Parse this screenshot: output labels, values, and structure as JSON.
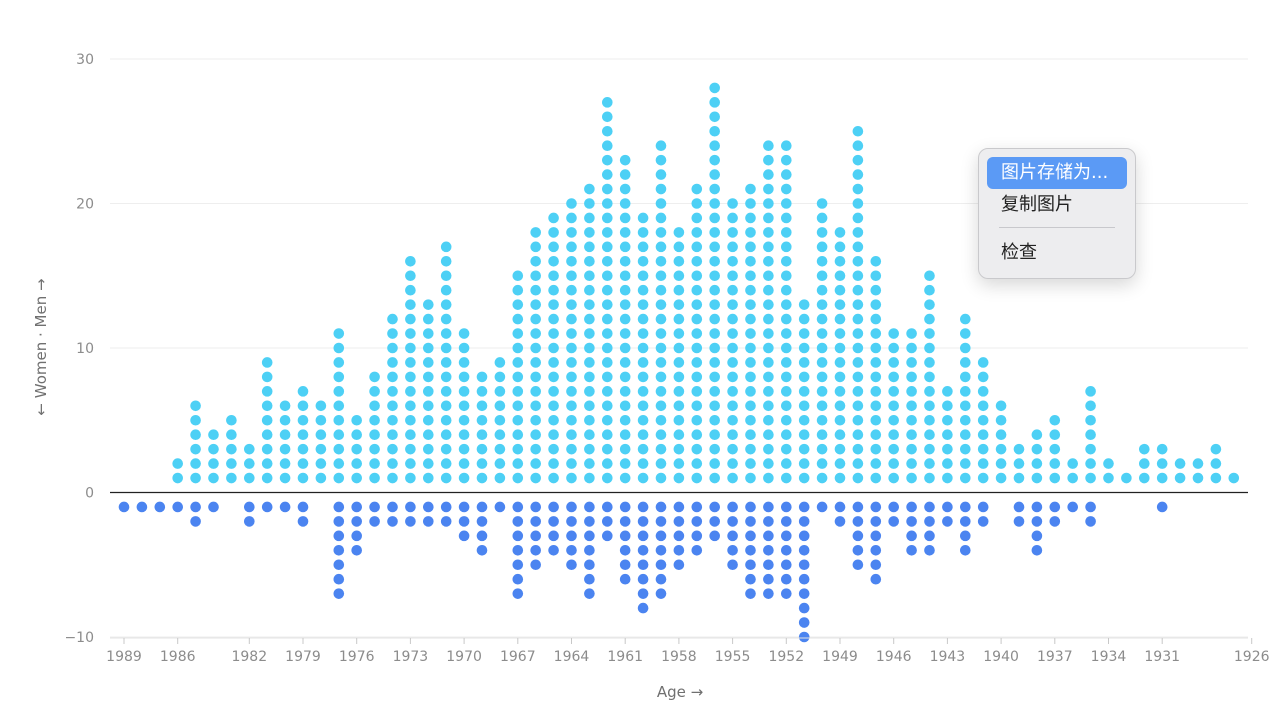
{
  "chart_data": {
    "type": "scatter",
    "subtype": "stacked-dot",
    "xlabel": "Age →",
    "ylabel": "← Women · Men →",
    "ylim": [
      -10,
      30
    ],
    "yticks": [
      -10,
      0,
      10,
      20,
      30
    ],
    "xticks": [
      1989,
      1986,
      1982,
      1979,
      1976,
      1973,
      1970,
      1967,
      1964,
      1961,
      1958,
      1955,
      1952,
      1949,
      1946,
      1943,
      1940,
      1937,
      1934,
      1931,
      1926
    ],
    "x_order": "descending",
    "grid": "horizontal",
    "series": [
      {
        "name": "Men",
        "color": "#4dd0f5",
        "x": [
          1989,
          1988,
          1987,
          1986,
          1985,
          1984,
          1983,
          1982,
          1981,
          1980,
          1979,
          1978,
          1977,
          1976,
          1975,
          1974,
          1973,
          1972,
          1971,
          1970,
          1969,
          1968,
          1967,
          1966,
          1965,
          1964,
          1963,
          1962,
          1961,
          1960,
          1959,
          1958,
          1957,
          1956,
          1955,
          1954,
          1953,
          1952,
          1951,
          1950,
          1949,
          1948,
          1947,
          1946,
          1945,
          1944,
          1943,
          1942,
          1941,
          1940,
          1939,
          1938,
          1937,
          1936,
          1935,
          1934,
          1933,
          1932,
          1931,
          1930,
          1929,
          1928,
          1927,
          1926,
          1925
        ],
        "y": [
          0,
          0,
          0,
          2,
          6,
          4,
          5,
          3,
          9,
          6,
          7,
          6,
          11,
          5,
          8,
          12,
          16,
          13,
          17,
          11,
          8,
          9,
          15,
          18,
          19,
          20,
          21,
          27,
          23,
          19,
          24,
          18,
          21,
          28,
          20,
          21,
          24,
          24,
          13,
          20,
          18,
          25,
          16,
          11,
          11,
          15,
          7,
          12,
          9,
          6,
          3,
          4,
          5,
          2,
          7,
          2,
          1,
          3,
          3,
          2,
          2,
          3,
          1,
          0,
          0
        ]
      },
      {
        "name": "Women",
        "color": "#4b84f0",
        "x": [
          1989,
          1988,
          1987,
          1986,
          1985,
          1984,
          1983,
          1982,
          1981,
          1980,
          1979,
          1978,
          1977,
          1976,
          1975,
          1974,
          1973,
          1972,
          1971,
          1970,
          1969,
          1968,
          1967,
          1966,
          1965,
          1964,
          1963,
          1962,
          1961,
          1960,
          1959,
          1958,
          1957,
          1956,
          1955,
          1954,
          1953,
          1952,
          1951,
          1950,
          1949,
          1948,
          1947,
          1946,
          1945,
          1944,
          1943,
          1942,
          1941,
          1940,
          1939,
          1938,
          1937,
          1936,
          1935,
          1934,
          1933,
          1932,
          1931,
          1930,
          1929,
          1928,
          1927,
          1926,
          1925
        ],
        "y": [
          -1,
          -1,
          -1,
          -1,
          -2,
          -1,
          0,
          -2,
          -1,
          -1,
          -2,
          0,
          -7,
          -4,
          -2,
          -2,
          -2,
          -2,
          -2,
          -3,
          -4,
          -1,
          -7,
          -5,
          -4,
          -5,
          -7,
          -3,
          -6,
          -8,
          -7,
          -5,
          -4,
          -3,
          -5,
          -7,
          -7,
          -7,
          -10,
          -1,
          -2,
          -5,
          -6,
          -2,
          -4,
          -4,
          -2,
          -4,
          -2,
          0,
          -2,
          -4,
          -2,
          -1,
          -2,
          0,
          0,
          0,
          -1,
          0,
          0,
          0,
          0,
          0,
          0
        ]
      }
    ]
  },
  "context_menu": {
    "items": [
      "图片存储为...",
      "复制图片",
      "检查"
    ],
    "active_index": 0
  }
}
